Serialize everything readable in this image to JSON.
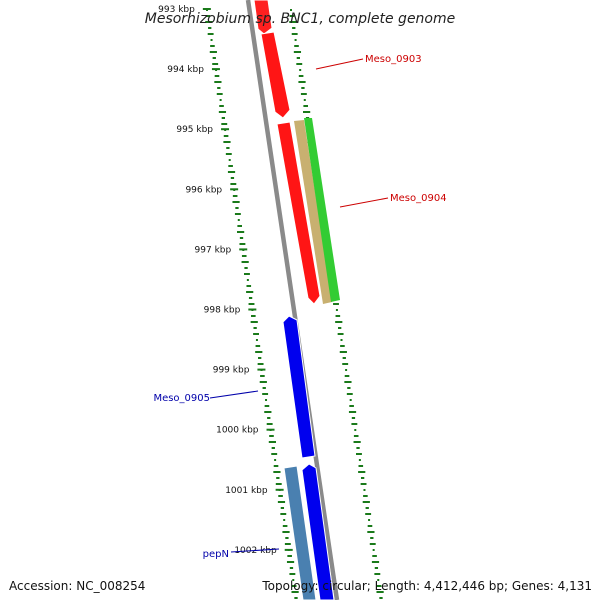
{
  "title": "Mesorhizobium sp. BNC1, complete genome",
  "accession": "Accession: NC_008254",
  "summary": "Topology: circular; Length: 4,412,446 bp; Genes: 4,131",
  "ticks": [
    {
      "label": "993 kbp",
      "faded": true
    },
    {
      "label": "994 kbp"
    },
    {
      "label": "995 kbp"
    },
    {
      "label": "996 kbp"
    },
    {
      "label": "997 kbp"
    },
    {
      "label": "998 kbp"
    },
    {
      "label": "999 kbp"
    },
    {
      "label": "1000 kbp"
    },
    {
      "label": "1001 kbp"
    },
    {
      "label": "1002 kbp"
    }
  ],
  "genes": [
    {
      "name": "Meso_0903",
      "color": "#cc0000"
    },
    {
      "name": "Meso_0904",
      "color": "#cc0000"
    },
    {
      "name": "Meso_0905",
      "color": "#0000aa"
    },
    {
      "name": "pepN",
      "color": "#0000aa"
    }
  ],
  "colors": {
    "forward_gene": "#ff0000",
    "reverse_gene": "#0000ff",
    "backbone": "#888888",
    "gc_track": "#1a7a1a",
    "feature_green": "#33cc33",
    "feature_tan": "#c8b070",
    "feature_steel": "#4a80b0"
  }
}
